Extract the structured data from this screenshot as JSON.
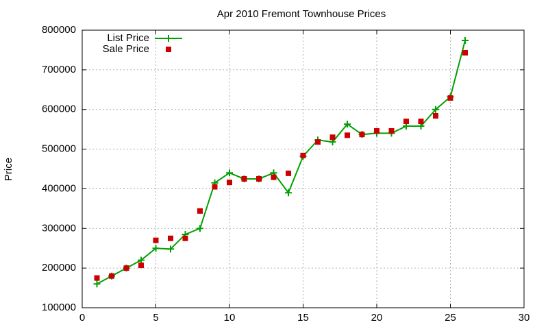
{
  "chart_data": {
    "type": "line",
    "title": "Apr 2010 Fremont Townhouse Prices",
    "y_label": "Price",
    "x": [
      1,
      2,
      3,
      4,
      5,
      6,
      7,
      8,
      9,
      10,
      11,
      12,
      13,
      14,
      15,
      16,
      17,
      18,
      19,
      20,
      21,
      22,
      23,
      24,
      25,
      26
    ],
    "series": [
      {
        "name": "List Price",
        "color": "#00a000",
        "style": "line-plus",
        "values": [
          160000,
          180000,
          200000,
          220000,
          250000,
          248000,
          285000,
          300000,
          415000,
          440000,
          425000,
          425000,
          440000,
          390000,
          482000,
          523000,
          518000,
          563000,
          537000,
          540000,
          540000,
          558000,
          558000,
          600000,
          632000,
          774000
        ]
      },
      {
        "name": "Sale Price",
        "color": "#cc0000",
        "style": "square",
        "values": [
          175000,
          180000,
          200000,
          207000,
          270000,
          275000,
          275000,
          344000,
          405000,
          416000,
          425000,
          425000,
          429000,
          439000,
          484000,
          518000,
          530000,
          535000,
          537000,
          546000,
          546000,
          570000,
          570000,
          584000,
          629000,
          743000
        ]
      }
    ],
    "xlim": [
      0,
      30
    ],
    "xticks": [
      0,
      5,
      10,
      15,
      20,
      25,
      30
    ],
    "ylim": [
      100000,
      800000
    ],
    "yticks": [
      100000,
      200000,
      300000,
      400000,
      500000,
      600000,
      700000,
      800000
    ],
    "grid": true,
    "legend": "top-left"
  }
}
